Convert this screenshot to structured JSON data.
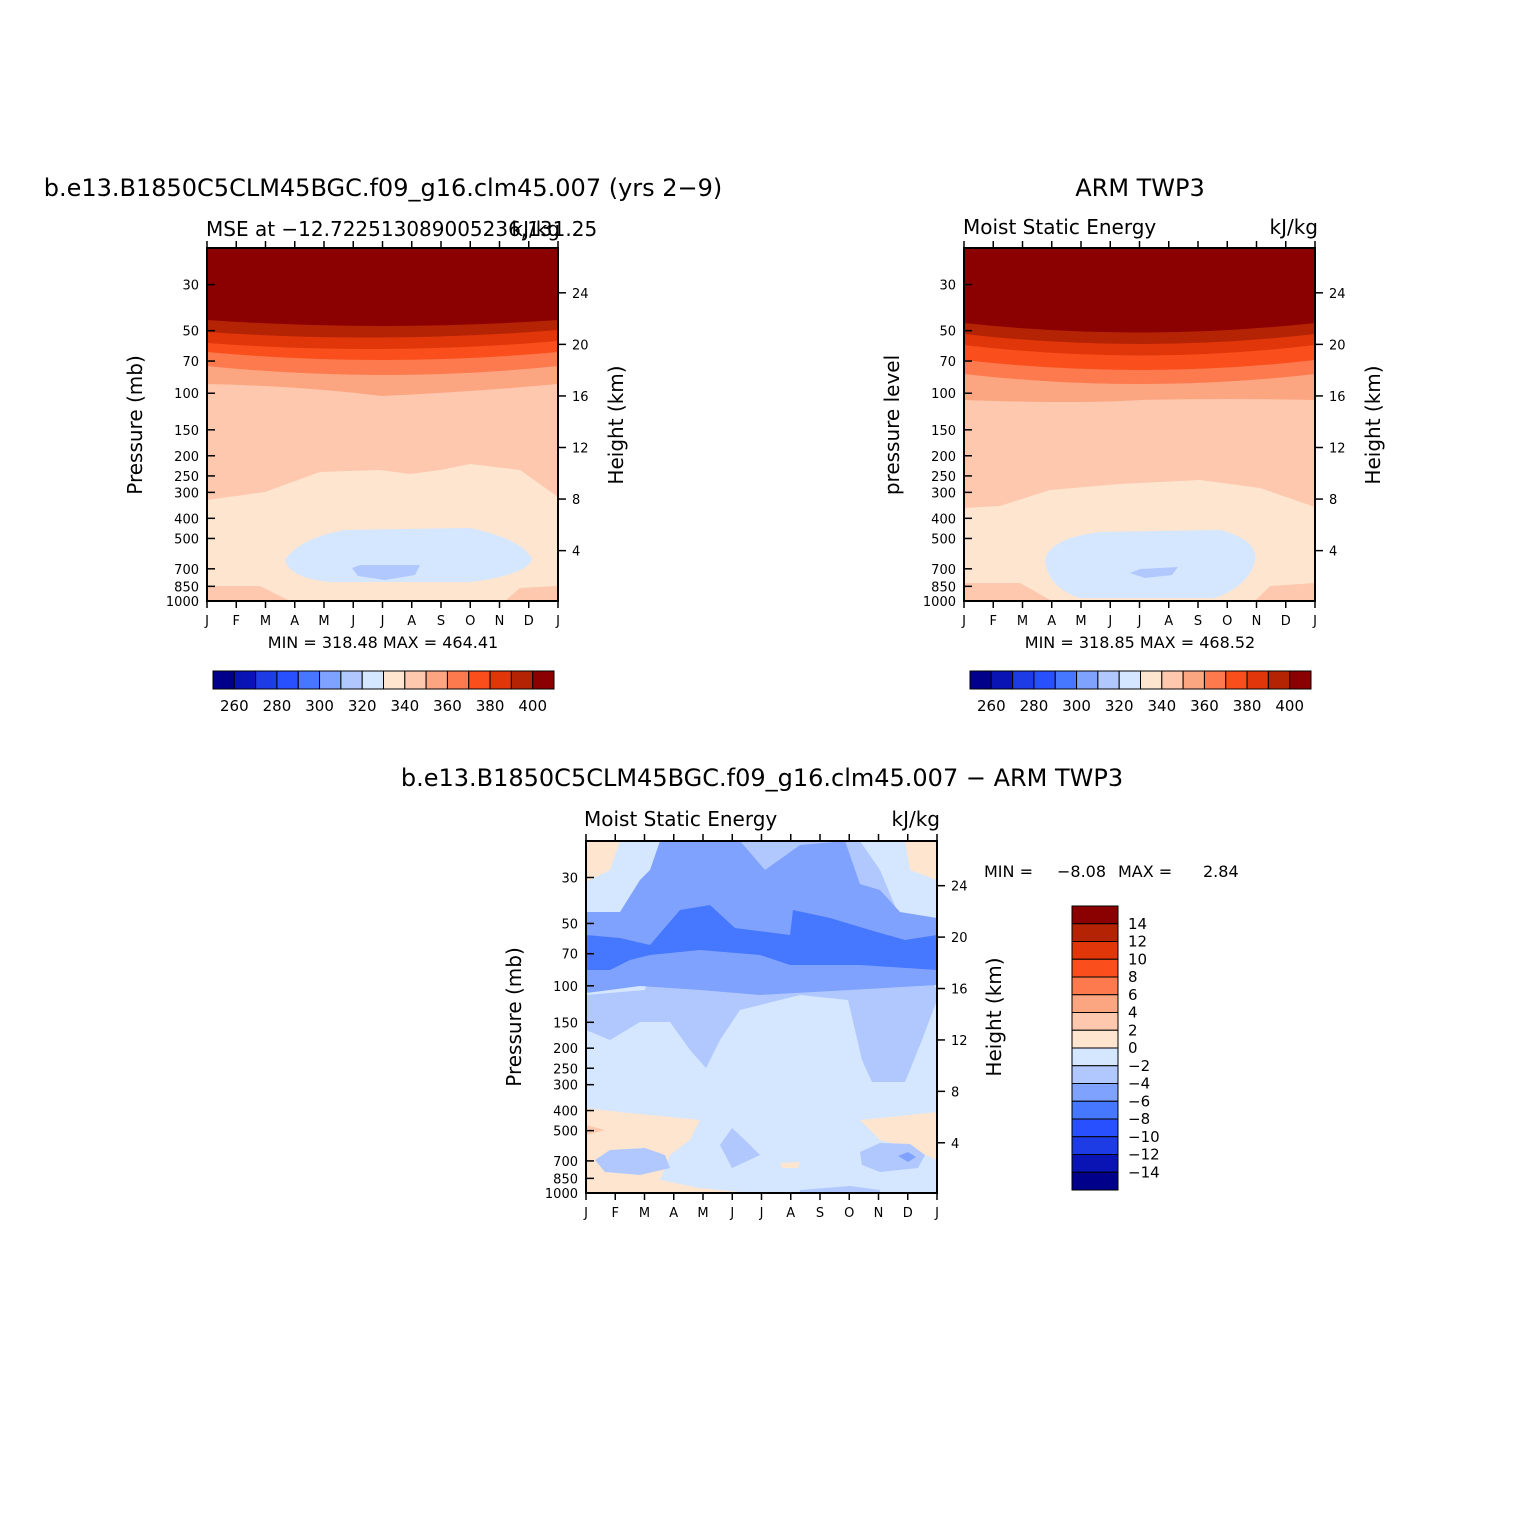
{
  "months": [
    "J",
    "F",
    "M",
    "A",
    "M",
    "J",
    "J",
    "A",
    "S",
    "O",
    "N",
    "D",
    "J"
  ],
  "pressure_axis": {
    "ticks": [
      "30",
      "50",
      "70",
      "100",
      "150",
      "200",
      "250",
      "300",
      "400",
      "500",
      "700",
      "850",
      "1000"
    ],
    "ylim_mb": [
      20,
      1000
    ],
    "scale": "log"
  },
  "panels": [
    {
      "id": "model",
      "title": "b.e13.B1850C5CLM45BGC.f09_g16.clm45.007 (yrs 2−9)",
      "left_label": "MSE at −12.722513089005236,131.25",
      "right_label": "kJ/kg",
      "ylabel": "Pressure (mb)",
      "ylabel_right": "Height (km)",
      "height_ticks": [
        "24",
        "20",
        "16",
        "12",
        "8",
        "4"
      ],
      "stats": "MIN = 318.48 MAX = 464.41",
      "colorbar": {
        "tick_labels": [
          "260",
          "280",
          "300",
          "320",
          "340",
          "360",
          "380",
          "400"
        ],
        "colors": [
          "#00008b",
          "#0a14b4",
          "#1e3ce6",
          "#2850ff",
          "#4678ff",
          "#80a2ff",
          "#b1c8ff",
          "#d5e6ff",
          "#fde5d0",
          "#fdc8ae",
          "#fca581",
          "#fc7a4e",
          "#fa4f1c",
          "#e0360a",
          "#b52305",
          "#8b0000"
        ]
      }
    },
    {
      "id": "obs",
      "title": "ARM TWP3",
      "left_label": "Moist Static Energy",
      "right_label": "kJ/kg",
      "ylabel": "pressure level",
      "ylabel_right": "Height (km)",
      "height_ticks": [
        "24",
        "20",
        "16",
        "12",
        "8",
        "4"
      ],
      "stats": "MIN = 318.85 MAX = 468.52",
      "colorbar": {
        "tick_labels": [
          "260",
          "280",
          "300",
          "320",
          "340",
          "360",
          "380",
          "400"
        ],
        "colors": [
          "#00008b",
          "#0a14b4",
          "#1e3ce6",
          "#2850ff",
          "#4678ff",
          "#80a2ff",
          "#b1c8ff",
          "#d5e6ff",
          "#fde5d0",
          "#fdc8ae",
          "#fca581",
          "#fc7a4e",
          "#fa4f1c",
          "#e0360a",
          "#b52305",
          "#8b0000"
        ]
      }
    },
    {
      "id": "diff",
      "title": "b.e13.B1850C5CLM45BGC.f09_g16.clm45.007 − ARM TWP3",
      "left_label": "Moist Static Energy",
      "right_label": "kJ/kg",
      "ylabel": "Pressure (mb)",
      "ylabel_right": "Height (km)",
      "height_ticks": [
        "24",
        "20",
        "16",
        "12",
        "8",
        "4"
      ],
      "stats_min_label": "MIN =",
      "stats_min": "−8.08",
      "stats_max_label": "MAX =",
      "stats_max": "2.84",
      "colorbar": {
        "tick_labels": [
          "14",
          "12",
          "10",
          "8",
          "6",
          "4",
          "2",
          "0",
          "−2",
          "−4",
          "−6",
          "−8",
          "−10",
          "−12",
          "−14"
        ],
        "colors": [
          "#8b0000",
          "#b52305",
          "#e0360a",
          "#fa4f1c",
          "#fc7a4e",
          "#fca581",
          "#fdc8ae",
          "#fde5d0",
          "#d5e6ff",
          "#b1c8ff",
          "#80a2ff",
          "#4678ff",
          "#2850ff",
          "#1e3ce6",
          "#0a14b4",
          "#00008b"
        ]
      }
    }
  ],
  "chart_data": [
    {
      "type": "heatmap",
      "title": "b.e13.B1850C5CLM45BGC.f09_g16.clm45.007 (yrs 2−9)",
      "subtitle": "MSE at −12.722513089005236,131.25",
      "units": "kJ/kg",
      "xlabel": "",
      "ylabel": "Pressure (mb)",
      "x": [
        "J",
        "F",
        "M",
        "A",
        "M",
        "J",
        "J",
        "A",
        "S",
        "O",
        "N",
        "D",
        "J"
      ],
      "contour_levels": [
        260,
        270,
        280,
        290,
        300,
        310,
        320,
        330,
        340,
        350,
        360,
        370,
        380,
        390,
        400
      ],
      "min": 318.48,
      "max": 464.41,
      "bands_top_to_bottom": [
        {
          "level_mb": [
            20,
            50
          ],
          "class": ">400"
        },
        {
          "level_mb": [
            50,
            60
          ],
          "class": "390-400"
        },
        {
          "level_mb": [
            60,
            70
          ],
          "class": "380-390"
        },
        {
          "level_mb": [
            70,
            80
          ],
          "class": "370-380"
        },
        {
          "level_mb": [
            80,
            100
          ],
          "class": "350-370"
        },
        {
          "level_mb": [
            100,
            320
          ],
          "class": "340-350"
        },
        {
          "level_mb": [
            320,
            1000
          ],
          "class": "330-340"
        },
        {
          "level_mb": [
            550,
            850
          ],
          "class": "320-330 (Jun–Oct)"
        },
        {
          "level_mb": [
            680,
            760
          ],
          "class": "310-320 (Jul)"
        }
      ]
    },
    {
      "type": "heatmap",
      "title": "ARM TWP3",
      "subtitle": "Moist Static Energy",
      "units": "kJ/kg",
      "ylabel": "pressure level",
      "x": [
        "J",
        "F",
        "M",
        "A",
        "M",
        "J",
        "J",
        "A",
        "S",
        "O",
        "N",
        "D",
        "J"
      ],
      "contour_levels": [
        260,
        270,
        280,
        290,
        300,
        310,
        320,
        330,
        340,
        350,
        360,
        370,
        380,
        390,
        400
      ],
      "min": 318.85,
      "max": 468.52,
      "bands_top_to_bottom": [
        {
          "level_mb": [
            20,
            50
          ],
          "class": ">400"
        },
        {
          "level_mb": [
            50,
            60
          ],
          "class": "390-400"
        },
        {
          "level_mb": [
            60,
            70
          ],
          "class": "380-390"
        },
        {
          "level_mb": [
            70,
            90
          ],
          "class": "370-380"
        },
        {
          "level_mb": [
            90,
            120
          ],
          "class": "350-370"
        },
        {
          "level_mb": [
            120,
            300
          ],
          "class": "340-350"
        },
        {
          "level_mb": [
            300,
            1000
          ],
          "class": "330-340"
        },
        {
          "level_mb": [
            550,
            900
          ],
          "class": "320-330 (Jun–Oct)"
        },
        {
          "level_mb": [
            700,
            760
          ],
          "class": "310-320 (Jul)"
        }
      ]
    },
    {
      "type": "heatmap",
      "title": "b.e13.B1850C5CLM45BGC.f09_g16.clm45.007 − ARM TWP3",
      "subtitle": "Moist Static Energy",
      "units": "kJ/kg",
      "ylabel": "Pressure (mb)",
      "x": [
        "J",
        "F",
        "M",
        "A",
        "M",
        "J",
        "J",
        "A",
        "S",
        "O",
        "N",
        "D",
        "J"
      ],
      "contour_levels": [
        -14,
        -12,
        -10,
        -8,
        -6,
        -4,
        -2,
        0,
        2,
        4,
        6,
        8,
        10,
        12,
        14
      ],
      "min": -8.08,
      "max": 2.84,
      "regions": [
        {
          "level_mb": [
            60,
            100
          ],
          "class": "-8 to -6"
        },
        {
          "level_mb": [
            30,
            150
          ],
          "class": "-6 to -4"
        },
        {
          "level_mb": [
            100,
            300
          ],
          "class": "-4 to -2"
        },
        {
          "level_mb": [
            150,
            1000
          ],
          "class": "-2 to 0"
        },
        {
          "level_mb": [
            400,
            850
          ],
          "class": "0 to 2 (partial)"
        }
      ]
    }
  ]
}
